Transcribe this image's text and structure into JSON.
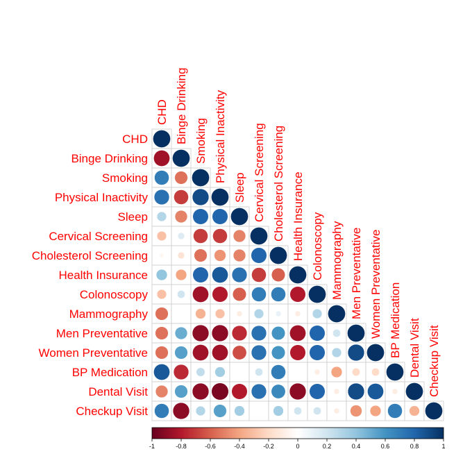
{
  "chart_data": {
    "type": "heatmap",
    "style": "correlation-circles-lower-triangle",
    "labels": [
      "CHD",
      "Binge Drinking",
      "Smoking",
      "Physical Inactivity",
      "Sleep",
      "Cervical Screening",
      "Cholesterol Screening",
      "Health Insurance",
      "Colonoscopy",
      "Mammography",
      "Men Preventative",
      "Women Preventative",
      "BP Medication",
      "Dental Visit",
      "Checkup Visit"
    ],
    "matrix": [
      [
        1.0
      ],
      [
        -0.85,
        1.0
      ],
      [
        0.7,
        -0.55,
        1.0
      ],
      [
        0.75,
        -0.7,
        0.9,
        1.0
      ],
      [
        0.3,
        -0.5,
        0.8,
        0.8,
        1.0
      ],
      [
        -0.3,
        0.15,
        -0.7,
        -0.7,
        -0.5,
        1.0
      ],
      [
        -0.05,
        -0.15,
        -0.55,
        -0.45,
        -0.5,
        0.8,
        1.0
      ],
      [
        0.4,
        -0.4,
        0.8,
        0.85,
        0.75,
        -0.7,
        -0.6,
        1.0
      ],
      [
        -0.3,
        0.2,
        -0.85,
        -0.8,
        -0.6,
        0.7,
        0.7,
        -0.8,
        1.0
      ],
      [
        -0.55,
        0.0,
        -0.35,
        -0.3,
        -0.1,
        0.3,
        0.1,
        -0.1,
        0.3,
        1.0
      ],
      [
        -0.55,
        0.5,
        -0.9,
        -0.9,
        -0.75,
        0.75,
        0.6,
        -0.85,
        0.8,
        0.2,
        1.0
      ],
      [
        -0.55,
        0.55,
        -0.85,
        -0.85,
        -0.65,
        0.75,
        0.6,
        -0.8,
        0.8,
        0.3,
        0.9,
        1.0
      ],
      [
        0.85,
        -0.75,
        0.25,
        0.35,
        0.0,
        0.2,
        0.7,
        0.0,
        -0.1,
        -0.4,
        -0.2,
        -0.2,
        1.0
      ],
      [
        -0.5,
        0.55,
        -0.9,
        -0.95,
        -0.8,
        0.75,
        0.65,
        -0.9,
        0.8,
        -0.1,
        0.9,
        0.85,
        -0.1,
        1.0
      ],
      [
        0.7,
        -0.9,
        0.3,
        0.55,
        0.35,
        0.0,
        0.35,
        0.2,
        0.2,
        -0.1,
        -0.45,
        -0.4,
        0.7,
        -0.35,
        1.0
      ]
    ],
    "colorbar": {
      "range": [
        -1,
        1
      ],
      "ticks": [
        "-1",
        "-0.8",
        "-0.6",
        "-0.4",
        "-0.2",
        "0",
        "0.2",
        "0.4",
        "0.6",
        "0.8",
        "1"
      ],
      "stops": [
        "#67001F",
        "#B2182B",
        "#D6604D",
        "#F4A582",
        "#FDDBC7",
        "#FFFFFF",
        "#D1E5F0",
        "#92C5DE",
        "#4393C3",
        "#2166AC",
        "#053061"
      ]
    },
    "label_color": "#FF0000"
  }
}
